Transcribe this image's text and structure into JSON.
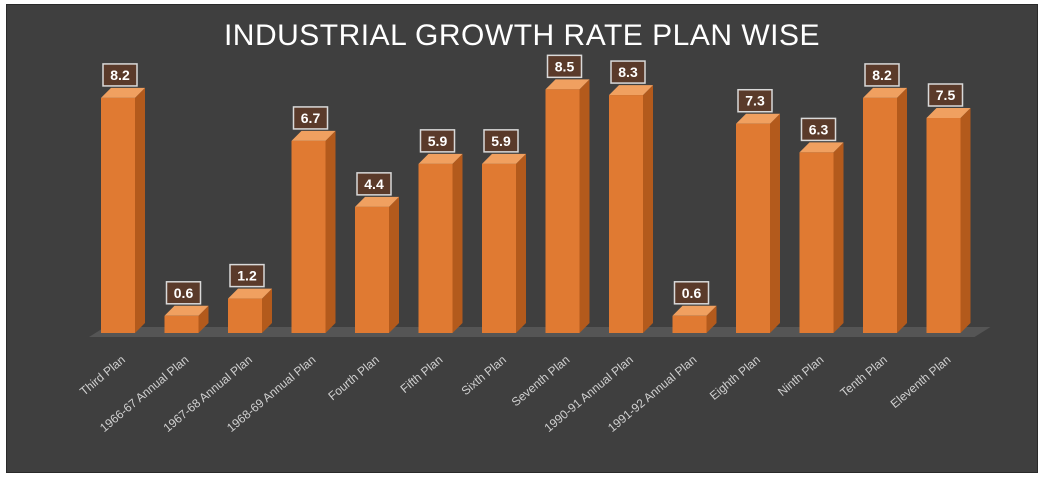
{
  "chart_data": {
    "type": "bar",
    "title": "INDUSTRIAL GROWTH RATE PLAN WISE",
    "categories": [
      "Third Plan",
      "1966-67 Annual Plan",
      "1967-68 Annual Plan",
      "1968-69 Annual Plan",
      "Fourth Plan",
      "Fifth Plan",
      "Sixth Plan",
      "Seventh Plan",
      "1990-91 Annual Plan",
      "1991-92 Annual Plan",
      "Eighth Plan",
      "Ninth Plan",
      "Tenth Plan",
      "Eleventh Plan"
    ],
    "values": [
      8.2,
      0.6,
      1.2,
      6.7,
      4.4,
      5.9,
      5.9,
      8.5,
      8.3,
      0.6,
      7.3,
      6.3,
      8.2,
      7.5
    ],
    "data_labels": [
      "8.2",
      "0.6",
      "1.2",
      "6.7",
      "4.4",
      "5.9",
      "5.9",
      "8.5",
      "8.3",
      "0.6",
      "7.3",
      "6.3",
      "8.2",
      "7.5"
    ],
    "ylim": [
      0,
      9
    ],
    "grid": false,
    "colors": {
      "bar_front": "#e07a32",
      "bar_side": "#b35a1c",
      "bar_top": "#f0a060",
      "background": "#3f3f3f",
      "floor": "#555555",
      "label_box": "#5a3a2a"
    }
  }
}
